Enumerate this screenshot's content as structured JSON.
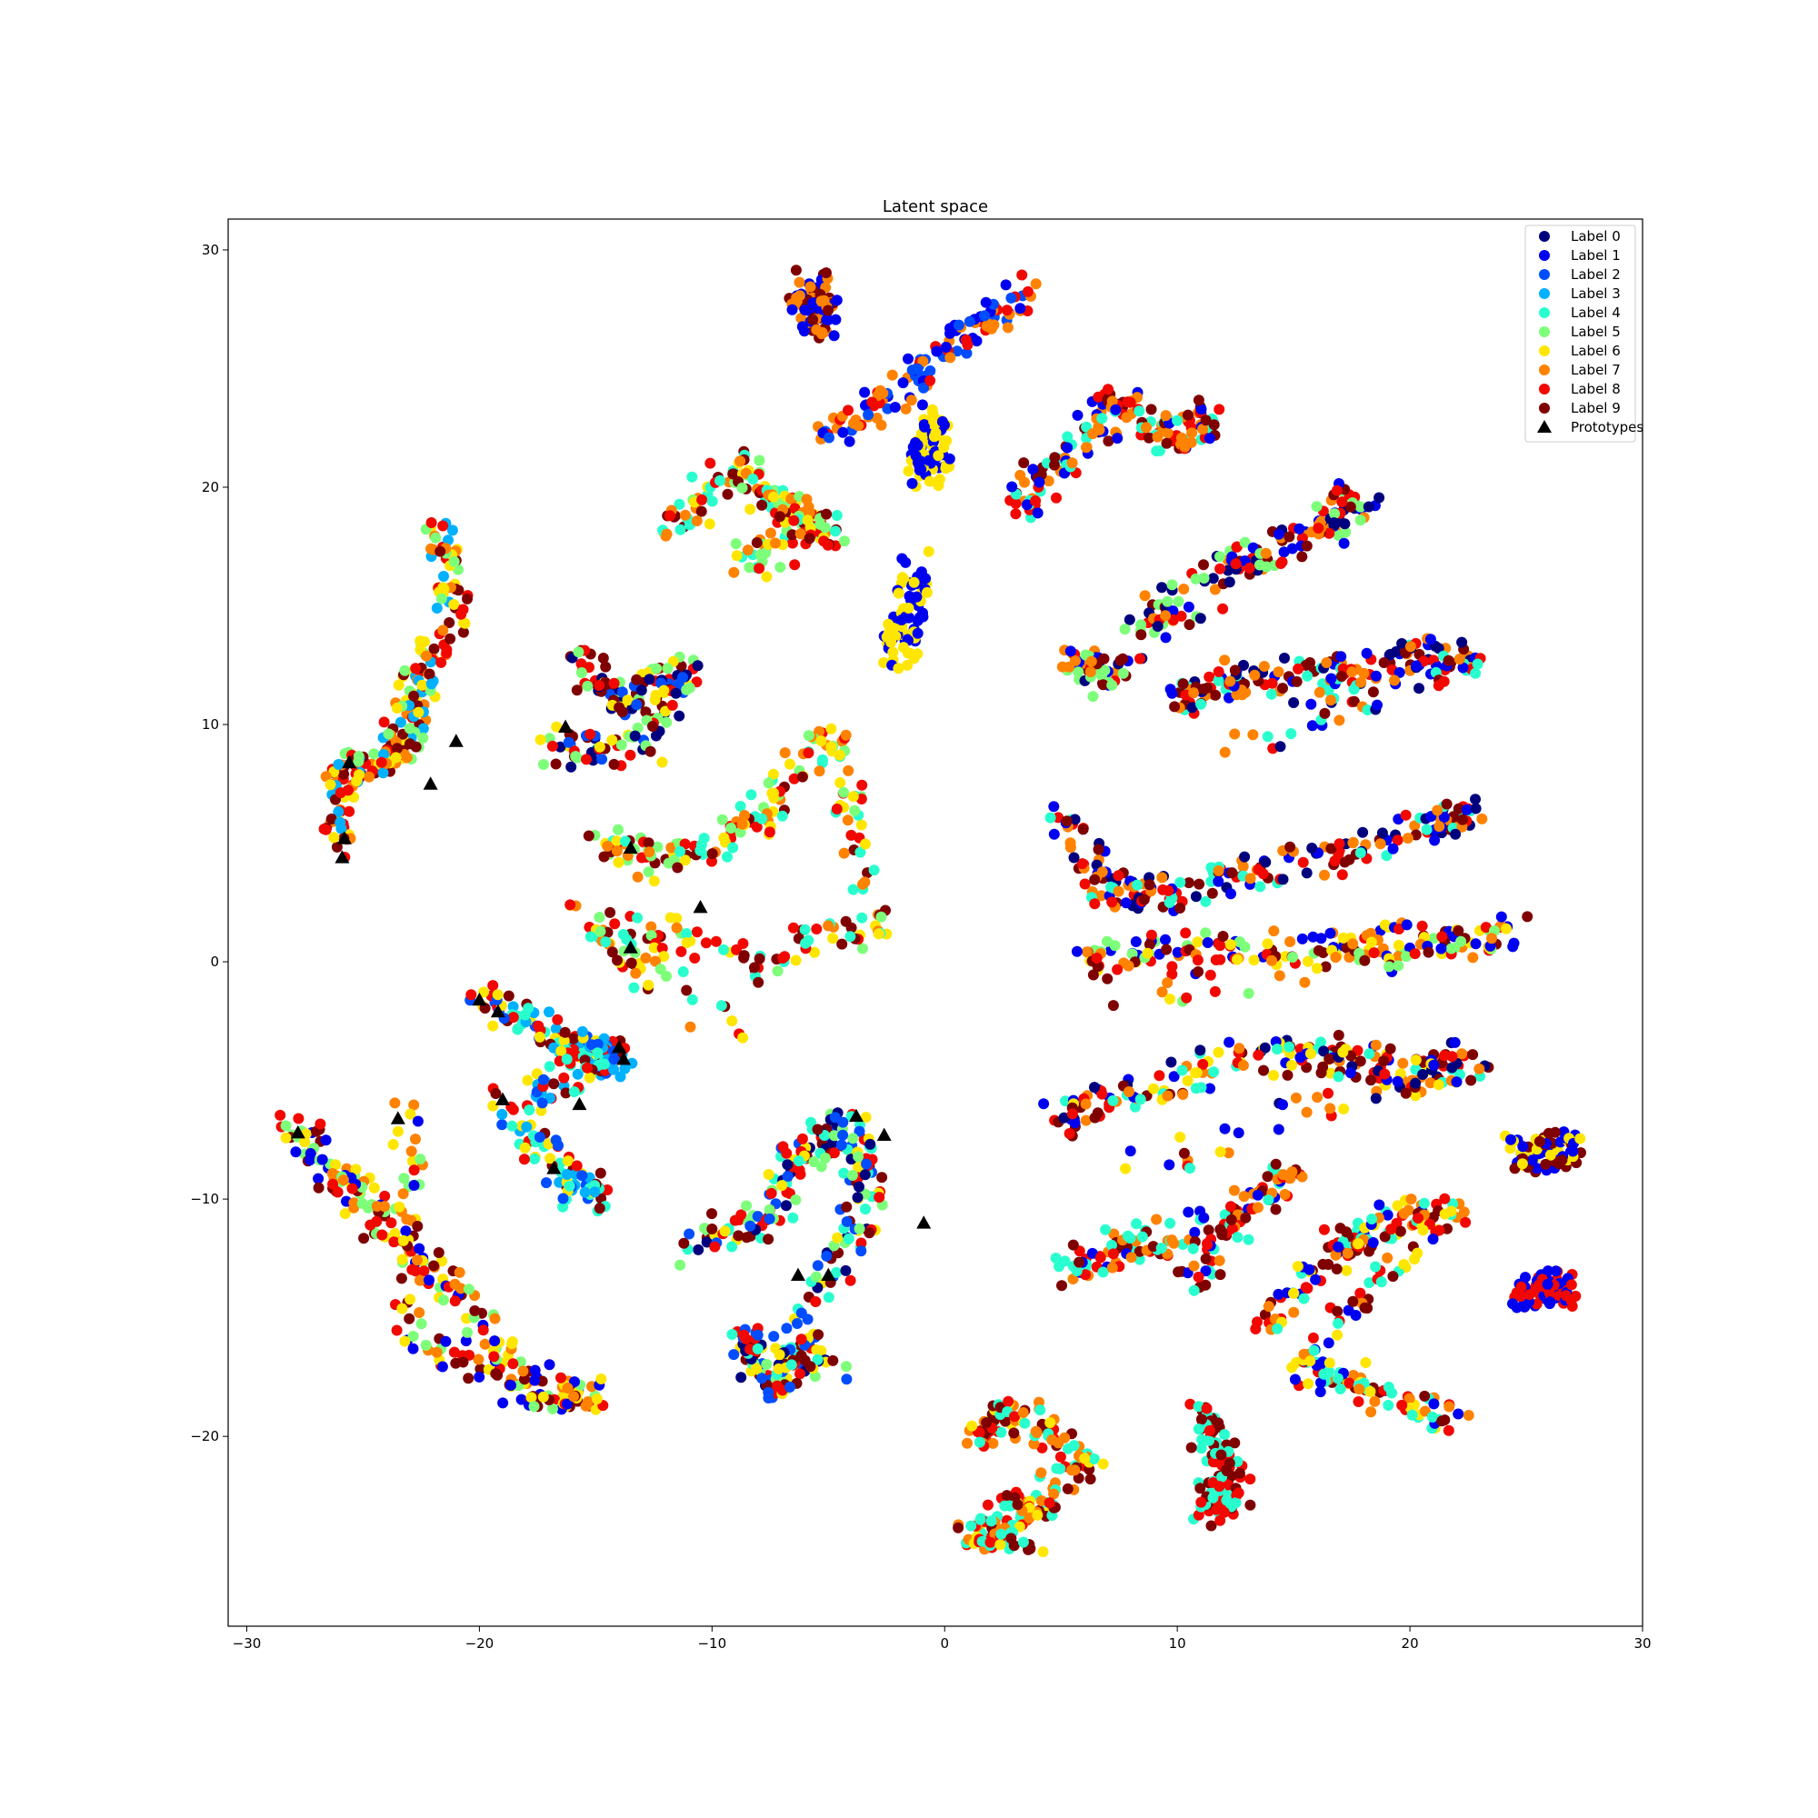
{
  "chart_data": {
    "type": "scatter",
    "title": "Latent space",
    "xlabel": "",
    "ylabel": "",
    "xlim": [
      -30.8,
      30.0
    ],
    "ylim": [
      -28.0,
      31.3
    ],
    "xticks": [
      -30,
      -20,
      -10,
      0,
      10,
      20,
      30
    ],
    "yticks": [
      -20,
      -10,
      0,
      10,
      20,
      30
    ],
    "xtick_labels": [
      "−30",
      "−20",
      "−10",
      "0",
      "10",
      "20",
      "30"
    ],
    "ytick_labels": [
      "−20",
      "−10",
      "0",
      "10",
      "20",
      "30"
    ],
    "grid": false,
    "legend_position": "top-right",
    "legend": [
      {
        "name": "Label 0",
        "color": "#00007f"
      },
      {
        "name": "Label 1",
        "color": "#0000f1"
      },
      {
        "name": "Label 2",
        "color": "#004dff"
      },
      {
        "name": "Label 3",
        "color": "#00b1ff"
      },
      {
        "name": "Label 4",
        "color": "#29ffce"
      },
      {
        "name": "Label 5",
        "color": "#7dff7a"
      },
      {
        "name": "Label 6",
        "color": "#ffe600"
      },
      {
        "name": "Label 7",
        "color": "#ff8200"
      },
      {
        "name": "Label 8",
        "color": "#f10800"
      },
      {
        "name": "Label 9",
        "color": "#7f0000"
      },
      {
        "name": "Prototypes",
        "color": "#000000",
        "marker": "triangle"
      }
    ],
    "clusters": [
      {
        "points": [
          [
            -22,
            19
          ],
          [
            -21,
            15
          ],
          [
            -22.5,
            12
          ],
          [
            -23,
            10
          ],
          [
            -24,
            8.5
          ],
          [
            -26,
            8
          ],
          [
            -26,
            5
          ]
        ],
        "colors": [
          7,
          8,
          6,
          9,
          5,
          3
        ]
      },
      {
        "points": [
          [
            -16,
            13
          ],
          [
            -14,
            11
          ],
          [
            -11,
            12.5
          ],
          [
            -13,
            9
          ],
          [
            -17,
            9
          ]
        ],
        "colors": [
          0,
          6,
          5,
          8,
          9,
          2
        ]
      },
      {
        "points": [
          [
            -12,
            18
          ],
          [
            -9,
            21
          ],
          [
            -7,
            19
          ],
          [
            -5,
            18
          ],
          [
            -9,
            17
          ]
        ],
        "colors": [
          9,
          6,
          8,
          5,
          4,
          7
        ]
      },
      {
        "points": [
          [
            -5,
            22
          ],
          [
            -2,
            24
          ],
          [
            1,
            26.5
          ],
          [
            3.5,
            28.2
          ]
        ],
        "colors": [
          1,
          7,
          8,
          2
        ]
      },
      {
        "points": [
          [
            -6,
            28.5
          ],
          [
            -5.5,
            27.5
          ],
          [
            -5.3,
            26.7
          ]
        ],
        "colors": [
          1,
          7,
          9
        ]
      },
      {
        "points": [
          [
            -0.5,
            22.9
          ],
          [
            -0.7,
            21.5
          ],
          [
            -0.6,
            20.5
          ]
        ],
        "colors": [
          1,
          6
        ]
      },
      {
        "points": [
          [
            -1.2,
            16.5
          ],
          [
            -1.6,
            14.5
          ],
          [
            -2.1,
            12.9
          ]
        ],
        "colors": [
          1,
          6
        ]
      },
      {
        "points": [
          [
            3,
            19
          ],
          [
            5,
            21
          ],
          [
            7.5,
            23.5
          ],
          [
            10,
            22
          ],
          [
            11.5,
            23.2
          ]
        ],
        "colors": [
          9,
          7,
          1,
          4,
          8
        ]
      },
      {
        "points": [
          [
            8,
            14
          ],
          [
            12,
            16.5
          ],
          [
            16,
            18
          ],
          [
            18,
            19.5
          ],
          [
            7,
            12
          ],
          [
            5,
            13
          ]
        ],
        "colors": [
          0,
          9,
          7,
          1,
          8,
          5
        ]
      },
      {
        "points": [
          [
            10,
            11
          ],
          [
            12,
            12
          ],
          [
            16,
            12
          ],
          [
            20,
            12.8
          ],
          [
            23,
            12.9
          ],
          [
            12,
            9
          ]
        ],
        "colors": [
          9,
          8,
          7,
          1,
          4,
          0
        ]
      },
      {
        "points": [
          [
            -15,
            5
          ],
          [
            -12,
            4
          ],
          [
            -8,
            6
          ],
          [
            -5,
            10
          ],
          [
            -3,
            1.5
          ],
          [
            -8,
            0
          ],
          [
            -16,
            2
          ],
          [
            -9,
            -3
          ]
        ],
        "colors": [
          9,
          8,
          6,
          5,
          7,
          4
        ]
      },
      {
        "points": [
          [
            5,
            6.5
          ],
          [
            7,
            3
          ],
          [
            10,
            3
          ],
          [
            15,
            4
          ],
          [
            20,
            5.5
          ],
          [
            23,
            6.5
          ]
        ],
        "colors": [
          8,
          9,
          0,
          7,
          1,
          4
        ]
      },
      {
        "points": [
          [
            6,
            0
          ],
          [
            10,
            0.5
          ],
          [
            16,
            0.5
          ],
          [
            20,
            0.8
          ],
          [
            24.5,
            1.2
          ],
          [
            7,
            -1.5
          ]
        ],
        "colors": [
          9,
          8,
          5,
          7,
          1,
          6
        ]
      },
      {
        "points": [
          [
            -20,
            -1.5
          ],
          [
            -17,
            -3
          ],
          [
            -15,
            -4
          ],
          [
            -14,
            -4
          ],
          [
            -19,
            -6
          ],
          [
            -16,
            -9
          ],
          [
            -15,
            -10
          ]
        ],
        "colors": [
          8,
          9,
          6,
          4,
          3,
          2
        ]
      },
      {
        "points": [
          [
            -28,
            -7
          ],
          [
            -26,
            -9
          ],
          [
            -24,
            -11
          ],
          [
            -21,
            -14
          ],
          [
            -18,
            -18
          ],
          [
            -15,
            -18.5
          ],
          [
            -23,
            -16
          ],
          [
            -23,
            -6
          ]
        ],
        "colors": [
          9,
          8,
          7,
          5,
          6,
          1
        ]
      },
      {
        "points": [
          [
            -11,
            -12
          ],
          [
            -8,
            -11
          ],
          [
            -6,
            -8
          ],
          [
            -4,
            -7
          ],
          [
            -3,
            -10
          ],
          [
            -6,
            -15
          ],
          [
            -7,
            -18
          ],
          [
            -9,
            -16
          ],
          [
            -4,
            -17
          ]
        ],
        "colors": [
          8,
          9,
          6,
          2,
          5,
          4,
          0
        ]
      },
      {
        "points": [
          [
            5,
            -6.5
          ],
          [
            8,
            -5.5
          ],
          [
            13,
            -4
          ],
          [
            17,
            -4
          ],
          [
            20,
            -4.8
          ],
          [
            23,
            -4
          ],
          [
            7,
            -9
          ]
        ],
        "colors": [
          9,
          8,
          6,
          7,
          4,
          1,
          0
        ]
      },
      {
        "points": [
          [
            5,
            -13
          ],
          [
            8,
            -12
          ],
          [
            12,
            -11
          ],
          [
            15,
            -9
          ],
          [
            10,
            -14
          ]
        ],
        "colors": [
          9,
          7,
          1,
          4,
          8
        ]
      },
      {
        "points": [
          [
            14,
            -15
          ],
          [
            17,
            -12
          ],
          [
            19,
            -11
          ],
          [
            22,
            -10.5
          ],
          [
            15,
            -17
          ],
          [
            18,
            -18
          ],
          [
            22,
            -19.5
          ]
        ],
        "colors": [
          9,
          8,
          7,
          1,
          4,
          6
        ]
      },
      {
        "points": [
          [
            1,
            -20
          ],
          [
            3,
            -19
          ],
          [
            6,
            -21
          ],
          [
            4,
            -23
          ],
          [
            1,
            -24
          ],
          [
            3.5,
            -24.5
          ]
        ],
        "colors": [
          9,
          7,
          8,
          6,
          4
        ]
      },
      {
        "points": [
          [
            11,
            -19
          ],
          [
            12,
            -21
          ],
          [
            11.5,
            -23
          ],
          [
            12.5,
            -22
          ]
        ],
        "colors": [
          9,
          8,
          4
        ]
      },
      {
        "points": [
          [
            24.5,
            -8.3
          ],
          [
            26,
            -8
          ],
          [
            27.2,
            -7.7
          ]
        ],
        "colors": [
          9,
          1,
          6
        ]
      },
      {
        "points": [
          [
            24.9,
            -14
          ],
          [
            26,
            -13.8
          ],
          [
            26.8,
            -13.6
          ]
        ],
        "colors": [
          8,
          1
        ]
      }
    ],
    "prototypes": [
      [
        -25.6,
        8.4
      ],
      [
        -21.0,
        9.3
      ],
      [
        -22.1,
        7.5
      ],
      [
        -25.8,
        5.2
      ],
      [
        -25.9,
        4.4
      ],
      [
        -16.3,
        9.9
      ],
      [
        -13.5,
        4.8
      ],
      [
        -10.5,
        2.3
      ],
      [
        -13.5,
        0.6
      ],
      [
        -20.0,
        -1.6
      ],
      [
        -19.2,
        -2.1
      ],
      [
        -14.0,
        -3.6
      ],
      [
        -13.8,
        -4.1
      ],
      [
        -19.0,
        -5.8
      ],
      [
        -15.7,
        -6.0
      ],
      [
        -16.8,
        -8.7
      ],
      [
        -27.8,
        -7.2
      ],
      [
        -23.5,
        -6.6
      ],
      [
        -3.8,
        -6.5
      ],
      [
        -2.6,
        -7.3
      ],
      [
        -0.9,
        -11.0
      ],
      [
        -6.3,
        -13.2
      ],
      [
        -5.0,
        -13.2
      ]
    ]
  }
}
